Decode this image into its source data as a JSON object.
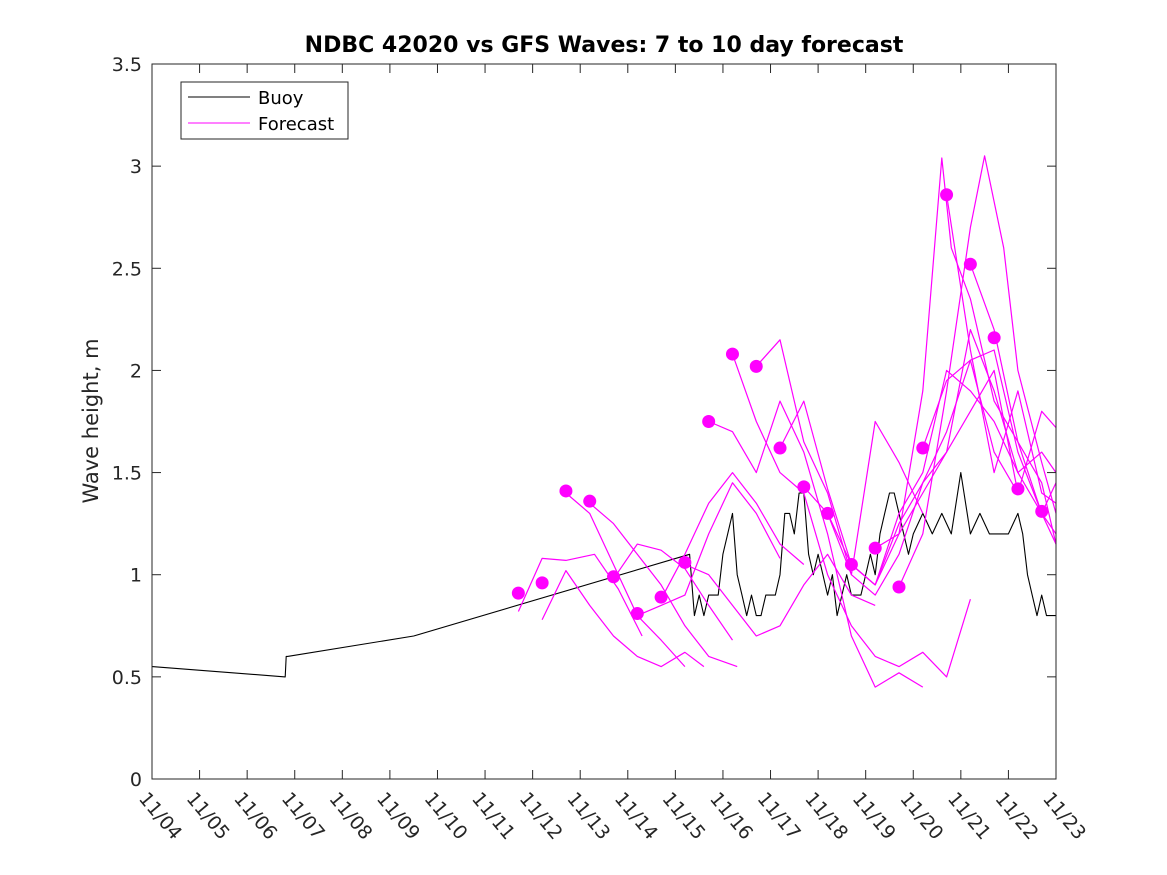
{
  "colors": {
    "buoy": "#000000",
    "forecast": "#ff00ff",
    "axis": "#262626",
    "background": "#ffffff"
  },
  "chart_data": {
    "type": "line",
    "title": "NDBC 42020 vs GFS Waves: 7 to 10 day forecast",
    "xlabel": "",
    "ylabel": "Wave height, m",
    "xlim": [
      0,
      19
    ],
    "ylim": [
      0,
      3.5
    ],
    "grid": false,
    "legend_position": "top-left",
    "x_ticks": [
      0,
      1,
      2,
      3,
      4,
      5,
      6,
      7,
      8,
      9,
      10,
      11,
      12,
      13,
      14,
      15,
      16,
      17,
      18,
      19
    ],
    "x_tick_labels": [
      "11/04",
      "11/05",
      "11/06",
      "11/07",
      "11/08",
      "11/09",
      "11/10",
      "11/11",
      "11/12",
      "11/13",
      "11/14",
      "11/15",
      "11/16",
      "11/17",
      "11/18",
      "11/19",
      "11/20",
      "11/21",
      "11/22",
      "11/23"
    ],
    "y_ticks": [
      0,
      0.5,
      1,
      1.5,
      2,
      2.5,
      3,
      3.5
    ],
    "y_tick_labels": [
      "0",
      "0.5",
      "1",
      "1.5",
      "2",
      "2.5",
      "3",
      "3.5"
    ],
    "legend": [
      "Buoy",
      "Forecast"
    ],
    "series": [
      {
        "name": "Buoy",
        "style": "line",
        "x": [
          0,
          2.8,
          2.82,
          2.85,
          5.5,
          11.3,
          11.4,
          11.5,
          11.6,
          11.7,
          11.8,
          11.9,
          12.0,
          12.1,
          12.2,
          12.3,
          12.4,
          12.5,
          12.6,
          12.7,
          12.8,
          12.9,
          13.0,
          13.1,
          13.2,
          13.3,
          13.4,
          13.5,
          13.6,
          13.7,
          13.8,
          13.9,
          14.0,
          14.1,
          14.2,
          14.3,
          14.4,
          14.5,
          14.6,
          14.7,
          14.8,
          14.9,
          15.0,
          15.1,
          15.2,
          15.3,
          15.4,
          15.5,
          15.6,
          15.7,
          15.8,
          15.9,
          16.0,
          16.2,
          16.4,
          16.6,
          16.8,
          17.0,
          17.2,
          17.4,
          17.6,
          17.8,
          18.0,
          18.2,
          18.3,
          18.4,
          18.5,
          18.6,
          18.7,
          18.8,
          18.9,
          19.0
        ],
        "values": [
          0.55,
          0.5,
          0.6,
          0.6,
          0.7,
          1.1,
          0.8,
          0.9,
          0.8,
          0.9,
          0.9,
          0.9,
          1.1,
          1.2,
          1.3,
          1.0,
          0.9,
          0.8,
          0.9,
          0.8,
          0.8,
          0.9,
          0.9,
          0.9,
          1.0,
          1.3,
          1.3,
          1.2,
          1.4,
          1.4,
          1.1,
          1.0,
          1.1,
          1.0,
          0.9,
          1.0,
          0.8,
          0.9,
          1.0,
          0.9,
          0.9,
          0.9,
          1.0,
          1.1,
          1.0,
          1.2,
          1.3,
          1.4,
          1.4,
          1.3,
          1.2,
          1.1,
          1.2,
          1.3,
          1.2,
          1.3,
          1.2,
          1.5,
          1.2,
          1.3,
          1.2,
          1.2,
          1.2,
          1.3,
          1.2,
          1.0,
          0.9,
          0.8,
          0.9,
          0.8,
          0.8,
          0.8
        ]
      },
      {
        "name": "Forecast",
        "style": "line",
        "x": [
          7.7,
          8.2,
          8.7,
          9.3,
          9.8,
          10.3
        ],
        "values": [
          0.82,
          1.08,
          1.07,
          1.1,
          0.93,
          0.7
        ]
      },
      {
        "name": "Forecast",
        "style": "line",
        "x": [
          8.2,
          8.7,
          9.2,
          9.7,
          10.2,
          10.7,
          11.2,
          11.6
        ],
        "values": [
          0.78,
          1.02,
          0.85,
          0.7,
          0.6,
          0.55,
          0.62,
          0.55
        ]
      },
      {
        "name": "Forecast",
        "style": "line",
        "x": [
          8.7,
          9.2,
          9.7,
          10.2,
          10.7,
          11.2
        ],
        "values": [
          1.4,
          1.3,
          1.05,
          0.8,
          0.68,
          0.55
        ]
      },
      {
        "name": "Forecast",
        "style": "line",
        "x": [
          9.2,
          9.7,
          10.2,
          10.7,
          11.2,
          11.7,
          12.3
        ],
        "values": [
          1.35,
          1.25,
          1.1,
          0.95,
          0.75,
          0.6,
          0.55
        ]
      },
      {
        "name": "Forecast",
        "style": "line",
        "x": [
          9.7,
          10.2,
          10.7,
          11.2,
          11.7,
          12.2
        ],
        "values": [
          0.98,
          1.15,
          1.12,
          1.03,
          0.85,
          0.68
        ]
      },
      {
        "name": "Forecast",
        "style": "line",
        "x": [
          10.2,
          10.7,
          11.2,
          11.7,
          12.2,
          12.7,
          13.2
        ],
        "values": [
          0.8,
          0.85,
          0.9,
          1.2,
          1.45,
          1.3,
          1.08
        ]
      },
      {
        "name": "Forecast",
        "style": "line",
        "x": [
          10.7,
          11.2,
          11.7,
          12.2,
          12.7,
          13.2,
          13.7
        ],
        "values": [
          0.88,
          1.1,
          1.35,
          1.5,
          1.35,
          1.15,
          1.05
        ]
      },
      {
        "name": "Forecast",
        "style": "line",
        "x": [
          11.2,
          11.7,
          12.2,
          12.7,
          13.2,
          13.7,
          14.2,
          14.7,
          15.2
        ],
        "values": [
          1.05,
          1.0,
          0.85,
          0.7,
          0.75,
          0.95,
          1.1,
          0.9,
          0.85
        ]
      },
      {
        "name": "Forecast",
        "style": "line",
        "x": [
          11.7,
          12.2,
          12.7,
          13.2,
          13.7,
          14.2,
          14.7,
          15.2,
          15.7,
          16.2
        ],
        "values": [
          1.75,
          1.7,
          1.5,
          1.85,
          1.6,
          1.2,
          0.7,
          0.45,
          0.52,
          0.45
        ]
      },
      {
        "name": "Forecast",
        "style": "line",
        "x": [
          12.2,
          12.7,
          13.2,
          13.7,
          14.2,
          14.7,
          15.2,
          15.7,
          16.2,
          16.7,
          17.2
        ],
        "values": [
          2.08,
          1.75,
          1.5,
          1.4,
          1.0,
          0.75,
          0.6,
          0.55,
          0.62,
          0.5,
          0.88
        ]
      },
      {
        "name": "Forecast",
        "style": "line",
        "x": [
          12.7,
          13.2,
          13.7,
          14.2,
          14.7,
          15.2,
          15.7,
          16.2
        ],
        "values": [
          2.02,
          2.15,
          1.65,
          1.4,
          1.0,
          1.75,
          1.55,
          1.3
        ]
      },
      {
        "name": "Forecast",
        "style": "line",
        "x": [
          13.2,
          13.7,
          14.2,
          14.7,
          15.2,
          15.7,
          16.2,
          16.7,
          17.2,
          17.7,
          18.2
        ],
        "values": [
          1.62,
          1.85,
          1.42,
          1.05,
          0.95,
          1.2,
          1.4,
          1.6,
          1.8,
          2.0,
          1.4
        ]
      },
      {
        "name": "Forecast",
        "style": "line",
        "x": [
          13.7,
          14.2,
          14.7,
          15.2,
          15.7,
          16.2,
          16.7,
          17.2,
          17.7,
          18.2,
          18.7,
          19.0
        ],
        "values": [
          1.43,
          1.3,
          1.05,
          0.95,
          1.25,
          1.45,
          1.6,
          2.2,
          1.9,
          1.5,
          1.3,
          1.2
        ]
      },
      {
        "name": "Forecast",
        "style": "line",
        "x": [
          14.2,
          14.7,
          15.2,
          15.7,
          16.2,
          16.7,
          17.2,
          17.7,
          18.2,
          18.7,
          19.0
        ],
        "values": [
          1.3,
          1.0,
          0.9,
          1.1,
          1.45,
          1.7,
          2.05,
          2.1,
          1.6,
          1.3,
          1.15
        ]
      },
      {
        "name": "Forecast",
        "style": "line",
        "x": [
          14.7,
          15.2,
          15.7,
          16.2,
          16.7,
          17.2,
          17.7,
          18.2,
          18.7,
          19.0
        ],
        "values": [
          1.05,
          0.95,
          1.3,
          1.5,
          2.0,
          1.9,
          1.75,
          1.5,
          1.6,
          1.5
        ]
      },
      {
        "name": "Forecast",
        "style": "line",
        "x": [
          15.2,
          15.7,
          16.2,
          16.6,
          16.8,
          17.2,
          17.7,
          18.2,
          18.7,
          19.0
        ],
        "values": [
          1.13,
          1.2,
          1.9,
          3.04,
          2.6,
          2.35,
          1.85,
          1.65,
          1.3,
          1.45
        ]
      },
      {
        "name": "Forecast",
        "style": "line",
        "x": [
          15.7,
          16.2,
          16.7,
          17.2,
          17.5,
          17.9,
          18.2,
          18.7,
          19.0
        ],
        "values": [
          0.94,
          1.2,
          1.9,
          2.7,
          3.05,
          2.6,
          2.0,
          1.55,
          1.3
        ]
      },
      {
        "name": "Forecast",
        "style": "line",
        "x": [
          16.2,
          16.7,
          17.2,
          17.7,
          18.2,
          18.7,
          19.0
        ],
        "values": [
          1.62,
          1.95,
          2.05,
          1.6,
          1.4,
          1.8,
          1.72
        ]
      },
      {
        "name": "Forecast",
        "style": "line",
        "x": [
          16.7,
          17.2,
          17.7,
          18.2,
          18.7,
          19.0
        ],
        "values": [
          2.86,
          2.1,
          1.5,
          1.9,
          1.4,
          1.35
        ]
      },
      {
        "name": "Forecast",
        "style": "line",
        "x": [
          17.2,
          17.7,
          18.2,
          18.7,
          19.0
        ],
        "values": [
          2.52,
          2.2,
          1.65,
          1.45,
          1.15
        ]
      },
      {
        "name": "Forecast initial values",
        "style": "markers",
        "x": [
          7.7,
          8.2,
          8.7,
          9.2,
          9.7,
          10.2,
          10.7,
          11.2,
          11.7,
          12.2,
          12.7,
          13.2,
          13.7,
          14.2,
          14.7,
          15.2,
          15.7,
          16.2,
          16.7,
          17.2,
          17.7,
          18.2,
          18.7
        ],
        "values": [
          0.91,
          0.96,
          1.41,
          1.36,
          0.99,
          0.81,
          0.89,
          1.06,
          1.75,
          2.08,
          2.02,
          1.62,
          1.43,
          1.3,
          1.05,
          1.13,
          0.94,
          1.62,
          2.86,
          2.52,
          2.16,
          1.42,
          1.31
        ]
      }
    ]
  }
}
